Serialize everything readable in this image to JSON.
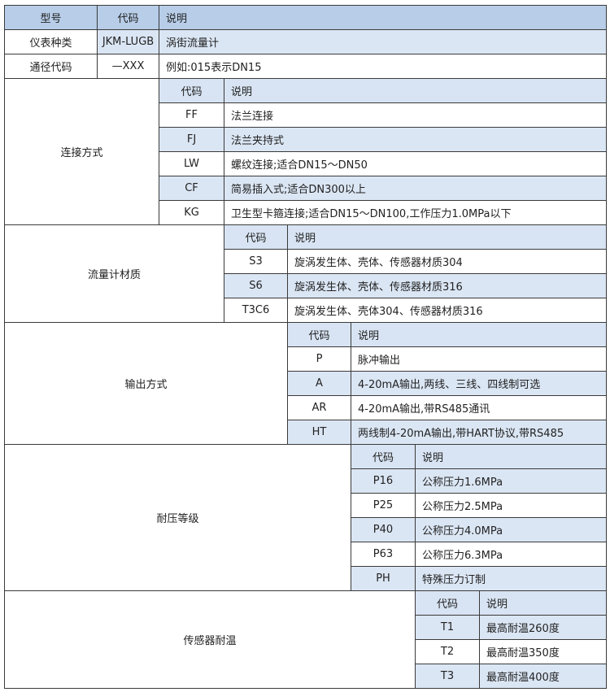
{
  "header": {
    "model": "型号",
    "code": "代码",
    "desc": "说明"
  },
  "rows": [
    {
      "label": "仪表种类",
      "code": "JKM-LUGB",
      "desc": "涡街流量计"
    },
    {
      "label": "通径代码",
      "code": "—XXX",
      "desc": "例如:015表示DN15"
    }
  ],
  "sections": [
    {
      "label": "连接方式",
      "code_header": "代码",
      "desc_header": "说明",
      "items": [
        {
          "code": "FF",
          "desc": "法兰连接"
        },
        {
          "code": "FJ",
          "desc": "法兰夹持式"
        },
        {
          "code": "LW",
          "desc": "螺纹连接;适合DN15～DN50"
        },
        {
          "code": "CF",
          "desc": "简易插入式;适合DN300以上"
        },
        {
          "code": "KG",
          "desc": "卫生型卡箍连接;适合DN15～DN100,工作压力1.0MPa以下"
        }
      ]
    },
    {
      "label": "流量计材质",
      "code_header": "代码",
      "desc_header": "说明",
      "items": [
        {
          "code": "S3",
          "desc": "旋涡发生体、壳体、传感器材质304"
        },
        {
          "code": "S6",
          "desc": "旋涡发生体、壳体、传感器材质316"
        },
        {
          "code": "T3C6",
          "desc": "旋涡发生体、壳体304、传感器材质316"
        }
      ]
    },
    {
      "label": "输出方式",
      "code_header": "代码",
      "desc_header": "说明",
      "items": [
        {
          "code": "P",
          "desc": "脉冲输出"
        },
        {
          "code": "A",
          "desc": "4-20mA输出,两线、三线、四线制可选"
        },
        {
          "code": "AR",
          "desc": "4-20mA输出,带RS485通讯"
        },
        {
          "code": "HT",
          "desc": "两线制4-20mA输出,带HART协议,带RS485"
        }
      ]
    },
    {
      "label": "耐压等级",
      "code_header": "代码",
      "desc_header": "说明",
      "items": [
        {
          "code": "P16",
          "desc": "公称压力1.6MPa"
        },
        {
          "code": "P25",
          "desc": "公称压力2.5MPa"
        },
        {
          "code": "P40",
          "desc": "公称压力4.0MPa"
        },
        {
          "code": "P63",
          "desc": "公称压力6.3MPa"
        },
        {
          "code": "PH",
          "desc": "特殊压力订制"
        }
      ]
    },
    {
      "label": "传感器耐温",
      "code_header": "代码",
      "desc_header": "说明",
      "items": [
        {
          "code": "T1",
          "desc": "最高耐温260度"
        },
        {
          "code": "T2",
          "desc": "最高耐温350度"
        },
        {
          "code": "T3",
          "desc": "最高耐温400度"
        }
      ]
    }
  ],
  "colors": {
    "header": "#b7cde8",
    "subheader": "#d8e4f3",
    "stripe": "#dbe6f4",
    "border": "#3a3a3a"
  }
}
